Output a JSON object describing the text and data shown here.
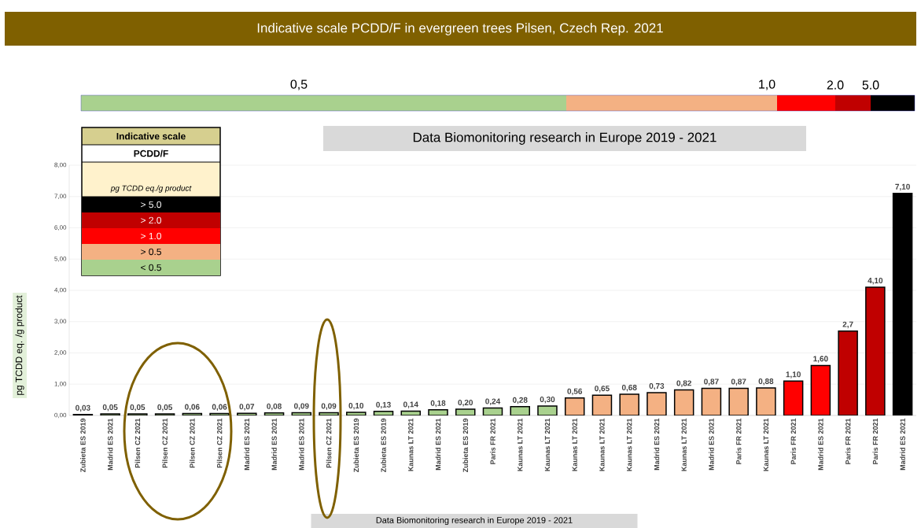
{
  "chart_data": {
    "type": "bar",
    "title": "Indicative scale PCDD/F in evergreen trees Pilsen, Czech Rep. 2021",
    "ylabel": "pg TCDD eq. /g product",
    "legend_title": "Indicative scale",
    "annotations": [
      "PCDD/F",
      "pg TCDD eq./g product",
      "Data Biomonitoring research in Europe  2019 - 2021",
      "0,5",
      "1,0",
      "2.0",
      "5.0",
      "Data Biomonitoring research in Europe  2019 - 2021"
    ],
    "categories": [
      "Zubieta ES 2019",
      "Madrid ES 2021",
      "Pilsen CZ 2021",
      "Pilsen CZ 2021",
      "Pilsen CZ 2021",
      "Pilsen CZ 2021",
      "Madrid ES 2021",
      "Madrid ES 2021",
      "Madrid ES 2021",
      "Pilsen CZ 2021",
      "Zubieta ES 2019",
      "Zubieta ES 2019",
      "Kaunas LT 2021",
      "Madrid ES 2021",
      "Zubieta ES 2019",
      "Paris FR 2021",
      "Kaunas LT 2021",
      "Kaunas LT 2021",
      "Kaunas LT 2021",
      "Kaunas LT 2021",
      "Kaunas LT 2021",
      "Madrid ES 2021",
      "Kaunas LT 2021",
      "Madrid ES 2021",
      "Paris FR 2021",
      "Kaunas LT 2021",
      "Paris FR 2021",
      "Madrid ES 2021",
      "Paris FR 2021",
      "Paris FR 2021",
      "Madrid ES 2021"
    ],
    "series": [
      {
        "name": "< 0.5",
        "color": "#a9d18e",
        "values": [
          0.03,
          0.05,
          0.05,
          0.05,
          0.06,
          0.06,
          0.07,
          0.08,
          0.09,
          0.09,
          0.1,
          0.13,
          0.14,
          0.18,
          0.2,
          0.24,
          0.28,
          0.3,
          null,
          null,
          null,
          null,
          null,
          null,
          null,
          null,
          null,
          null,
          null,
          null,
          null
        ],
        "value_labels": [
          "0,03",
          "0,05",
          "0,05",
          "0,05",
          "0,06",
          "0,06",
          "0,07",
          "0,08",
          "0,09",
          "0,09",
          "0,10",
          "0,13",
          "0,14",
          "0,18",
          "0,20",
          "0,24",
          "0,28",
          "0,30",
          null,
          null,
          null,
          null,
          null,
          null,
          null,
          null,
          null,
          null,
          null,
          null,
          null
        ]
      },
      {
        "name": "> 0.5",
        "color": "#f4b183",
        "values": [
          null,
          null,
          null,
          null,
          null,
          null,
          null,
          null,
          null,
          null,
          null,
          null,
          null,
          null,
          null,
          null,
          null,
          null,
          0.56,
          0.65,
          0.68,
          0.73,
          0.82,
          0.87,
          0.87,
          0.88,
          null,
          null,
          null,
          null,
          null
        ],
        "value_labels": [
          null,
          null,
          null,
          null,
          null,
          null,
          null,
          null,
          null,
          null,
          null,
          null,
          null,
          null,
          null,
          null,
          null,
          null,
          "0,56",
          "0,65",
          "0,68",
          "0,73",
          "0,82",
          "0,87",
          "0,87",
          "0,88",
          null,
          null,
          null,
          null,
          null
        ]
      },
      {
        "name": "> 1.0",
        "color": "#ff0000",
        "values": [
          null,
          null,
          null,
          null,
          null,
          null,
          null,
          null,
          null,
          null,
          null,
          null,
          null,
          null,
          null,
          null,
          null,
          null,
          null,
          null,
          null,
          null,
          null,
          null,
          null,
          null,
          1.1,
          1.6,
          null,
          null,
          null
        ],
        "value_labels": [
          null,
          null,
          null,
          null,
          null,
          null,
          null,
          null,
          null,
          null,
          null,
          null,
          null,
          null,
          null,
          null,
          null,
          null,
          null,
          null,
          null,
          null,
          null,
          null,
          null,
          null,
          "1,10",
          "1,60",
          null,
          null,
          null
        ]
      },
      {
        "name": "> 2.0",
        "color": "#c00000",
        "values": [
          null,
          null,
          null,
          null,
          null,
          null,
          null,
          null,
          null,
          null,
          null,
          null,
          null,
          null,
          null,
          null,
          null,
          null,
          null,
          null,
          null,
          null,
          null,
          null,
          null,
          null,
          null,
          null,
          2.7,
          4.1,
          null
        ],
        "value_labels": [
          null,
          null,
          null,
          null,
          null,
          null,
          null,
          null,
          null,
          null,
          null,
          null,
          null,
          null,
          null,
          null,
          null,
          null,
          null,
          null,
          null,
          null,
          null,
          null,
          null,
          null,
          null,
          null,
          "2,7",
          "4,10",
          null
        ]
      },
      {
        "name": "> 5.0",
        "color": "#000000",
        "values": [
          null,
          null,
          null,
          null,
          null,
          null,
          null,
          null,
          null,
          null,
          null,
          null,
          null,
          null,
          null,
          null,
          null,
          null,
          null,
          null,
          null,
          null,
          null,
          null,
          null,
          null,
          null,
          null,
          null,
          null,
          7.1
        ],
        "value_labels": [
          null,
          null,
          null,
          null,
          null,
          null,
          null,
          null,
          null,
          null,
          null,
          null,
          null,
          null,
          null,
          null,
          null,
          null,
          null,
          null,
          null,
          null,
          null,
          null,
          null,
          null,
          null,
          null,
          null,
          null,
          "7,10"
        ]
      }
    ],
    "ylim": [
      0,
      8
    ],
    "yticks": [
      {
        "value": 0,
        "label": "0,00"
      },
      {
        "value": 1,
        "label": "1,00"
      },
      {
        "value": 2,
        "label": "2,00"
      },
      {
        "value": 3,
        "label": "3,00"
      },
      {
        "value": 4,
        "label": "4,00"
      },
      {
        "value": 5,
        "label": "5,00"
      },
      {
        "value": 6,
        "label": "6,00"
      },
      {
        "value": 7,
        "label": "7,00"
      },
      {
        "value": 8,
        "label": "8,00"
      }
    ],
    "grid": "y",
    "legend": "top left"
  }
}
